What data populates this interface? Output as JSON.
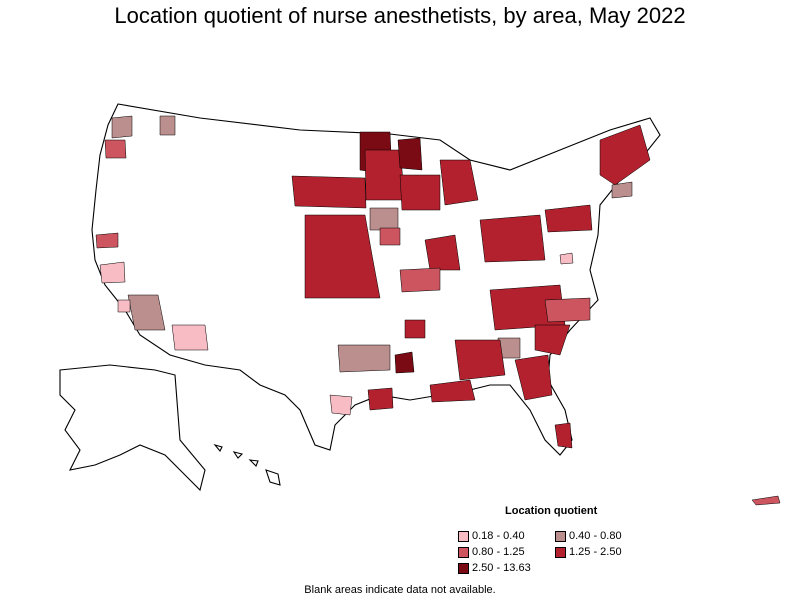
{
  "title": "Location quotient of nurse anesthetists, by area, May 2022",
  "legend": {
    "title": "Location quotient",
    "items": [
      {
        "label": "0.18 - 0.40",
        "color": "#f7bcc4"
      },
      {
        "label": "0.40 - 0.80",
        "color": "#bc8f8f"
      },
      {
        "label": "0.80 - 1.25",
        "color": "#cc5560"
      },
      {
        "label": "1.25 - 2.50",
        "color": "#b3212e"
      },
      {
        "label": "2.50 - 13.63",
        "color": "#7a0b14"
      }
    ]
  },
  "note": "Blank areas indicate data not available."
}
